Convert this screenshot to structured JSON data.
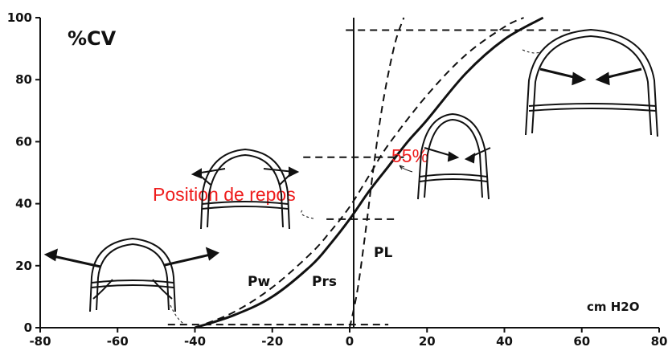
{
  "chart_data": {
    "type": "line",
    "x_ticks": [
      "-80",
      "-60",
      "-40",
      "-20",
      "0",
      "20",
      "40",
      "60",
      "80"
    ],
    "y_ticks": [
      "0",
      "20",
      "40",
      "60",
      "80",
      "100"
    ],
    "xlim": [
      -80,
      80
    ],
    "ylim": [
      0,
      100
    ],
    "y_unit_label": "%CV",
    "x_unit_label": "cm H2O",
    "series": [
      {
        "name": "Prs",
        "style": "solid",
        "x": [
          -40,
          -30,
          -20,
          -10,
          -5,
          0,
          5,
          10,
          15,
          20,
          30,
          40,
          50
        ],
        "y": [
          0,
          4,
          10,
          20,
          27,
          35,
          44,
          52,
          60,
          67,
          82,
          93,
          100
        ]
      },
      {
        "name": "Pw",
        "style": "dashed",
        "x": [
          -40,
          -30,
          -20,
          -10,
          -5,
          0,
          5,
          10,
          20,
          30,
          40,
          45
        ],
        "y": [
          0,
          5,
          13,
          24,
          31,
          39,
          49,
          59,
          75,
          88,
          97,
          100
        ]
      },
      {
        "name": "PL",
        "style": "dashed",
        "x": [
          0,
          2,
          4,
          6,
          8,
          10,
          12,
          14
        ],
        "y": [
          0,
          12,
          30,
          50,
          68,
          82,
          93,
          100
        ]
      }
    ],
    "annotations": {
      "rest_position": "Position de repos",
      "rest_value": 35,
      "percent_label": "55%",
      "percent_value": 55,
      "top_reference": 96
    },
    "series_labels": {
      "pw": "Pw",
      "prs": "Prs",
      "pl": "PL"
    }
  }
}
